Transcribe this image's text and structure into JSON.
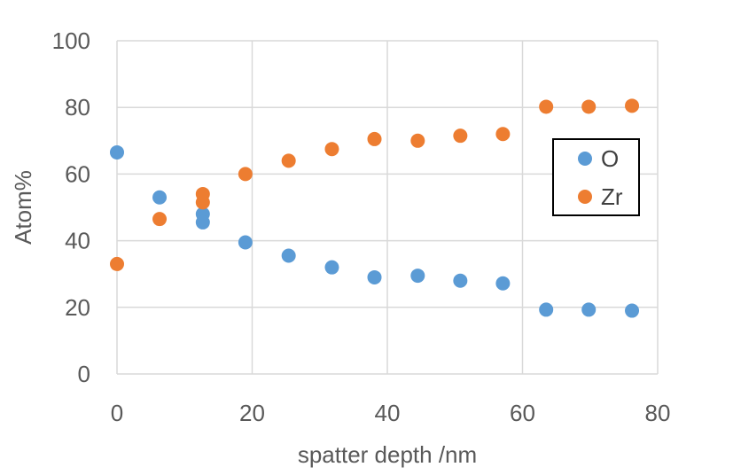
{
  "chart_data": {
    "type": "scatter",
    "xlabel": "spatter depth /nm",
    "ylabel": "Atom%",
    "xlim": [
      0,
      80
    ],
    "ylim": [
      0,
      100
    ],
    "xticks": [
      "0",
      "20",
      "40",
      "60",
      "80"
    ],
    "yticks": [
      "0",
      "20",
      "40",
      "60",
      "80",
      "100"
    ],
    "grid": true,
    "legend_position": "right",
    "series": [
      {
        "name": "O",
        "color": "#5B9BD5",
        "points": [
          [
            0,
            66.5
          ],
          [
            6.3,
            53
          ],
          [
            12.7,
            48
          ],
          [
            12.7,
            45.5
          ],
          [
            19,
            39.5
          ],
          [
            25.4,
            35.5
          ],
          [
            31.8,
            32
          ],
          [
            38.1,
            29
          ],
          [
            44.5,
            29.5
          ],
          [
            50.8,
            28
          ],
          [
            57.1,
            27.2
          ],
          [
            63.5,
            19.3
          ],
          [
            69.8,
            19.3
          ],
          [
            76.2,
            19
          ]
        ]
      },
      {
        "name": "Zr",
        "color": "#ED7D31",
        "points": [
          [
            0,
            33
          ],
          [
            6.3,
            46.5
          ],
          [
            12.7,
            54
          ],
          [
            12.7,
            51.5
          ],
          [
            19,
            60
          ],
          [
            25.4,
            64
          ],
          [
            31.8,
            67.5
          ],
          [
            38.1,
            70.5
          ],
          [
            44.5,
            70
          ],
          [
            50.8,
            71.5
          ],
          [
            57.1,
            72
          ],
          [
            63.5,
            80.2
          ],
          [
            69.8,
            80.2
          ],
          [
            76.2,
            80.5
          ]
        ]
      }
    ]
  }
}
